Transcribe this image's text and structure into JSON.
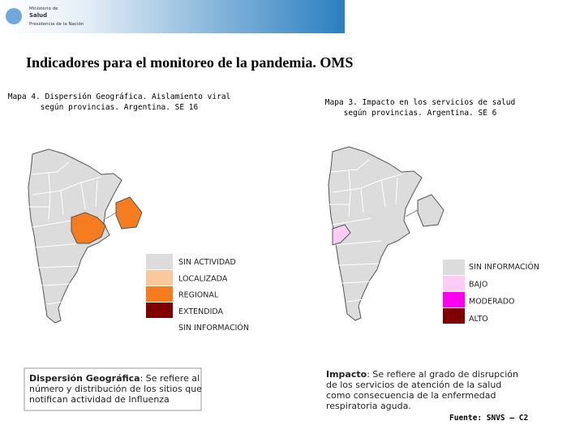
{
  "header": {
    "logo_lines": [
      "Ministerio de",
      "Salud",
      "Presidencia de la Nación"
    ]
  },
  "title": "Indicadores para el monitoreo de la pandemia. OMS",
  "map_left": {
    "caption": [
      "Mapa 4. Dispersión Geográfica. Aislamiento viral",
      "según provincias. Argentina. SE 16"
    ],
    "legend": [
      {
        "label": "SIN ACTIVIDAD",
        "color": "#dcdcdc"
      },
      {
        "label": "LOCALIZADA",
        "color": "#fbc89e"
      },
      {
        "label": "REGIONAL",
        "color": "#f57c1f"
      },
      {
        "label": "EXTENDIDA",
        "color": "#7f0000"
      },
      {
        "label": "SIN INFORMACIÓN",
        "color": "#ffffff"
      }
    ]
  },
  "map_right": {
    "caption": [
      "Mapa 3. Impacto en los servicios de salud",
      "según provincias. Argentina. SE 6"
    ],
    "legend": [
      {
        "label": "SIN INFORMACIÓN",
        "color": "#dcdcdc"
      },
      {
        "label": "BAJO",
        "color": "#fbcdf5"
      },
      {
        "label": "MODERADO",
        "color": "#ff00ee"
      },
      {
        "label": "ALTO",
        "color": "#7f0000"
      }
    ]
  },
  "notes": [
    {
      "term": "Dispersión Geográfica",
      "lines": [
        ": Se refiere al",
        "número y distribución de los sitios que",
        "notifican actividad de Influenza"
      ]
    },
    {
      "term": "Impacto",
      "lines": [
        ": Se refiere al grado de disrupción",
        "de los servicios de atención de la salud",
        "como consecuencia de la enfermedad",
        "respiratoria aguda."
      ]
    }
  ],
  "source": "Fuente: SNVS – C2"
}
